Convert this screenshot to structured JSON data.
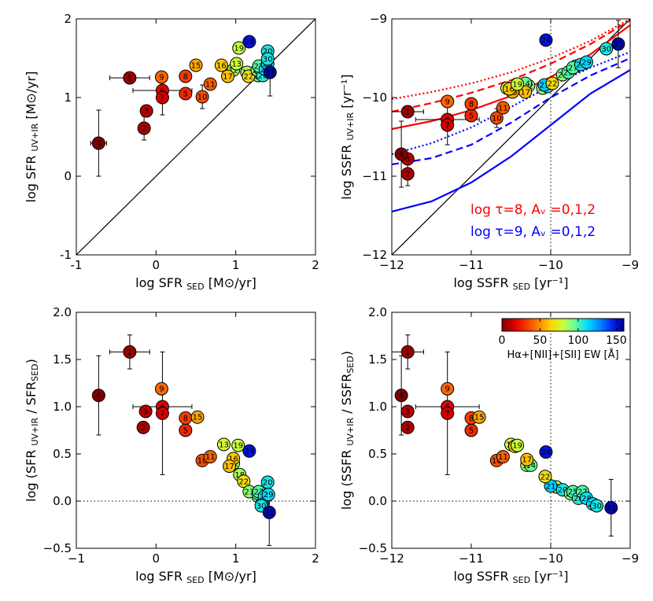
{
  "chart_data": [
    {
      "type": "scatter",
      "id": "sfr",
      "xlabel": "log SFR",
      "xlabel_sub": "SED",
      "xlabel_unit": "[M⊙/yr]",
      "ylabel": "log SFR",
      "ylabel_sub": "UV+IR",
      "ylabel_unit": "[M⊙/yr]",
      "xlim": [
        -1,
        2
      ],
      "ylim": [
        -1,
        2
      ],
      "xticks": [
        "-1",
        "0",
        "1",
        "2"
      ],
      "yticks": [
        "-1",
        "0",
        "1",
        "2"
      ],
      "reference_line": "y = x",
      "points": [
        {
          "id": "1",
          "x": -0.33,
          "y": 1.25,
          "ew": 5,
          "xerr": 0.25
        },
        {
          "id": "2",
          "x": -0.15,
          "y": 0.61,
          "ew": 8,
          "xerr": 0.05,
          "yerr": 0.15
        },
        {
          "id": "3",
          "x": -0.12,
          "y": 0.83,
          "ew": 10
        },
        {
          "id": "4",
          "x": -0.72,
          "y": 0.42,
          "ew": 0,
          "xerr": 0.1,
          "yerr": 0.42
        },
        {
          "id": "5",
          "x": 0.37,
          "y": 1.05,
          "ew": 28
        },
        {
          "id": "6",
          "x": 0.08,
          "y": 1.09,
          "ew": 18,
          "xerr": 0.37
        },
        {
          "id": "7",
          "x": 0.08,
          "y": 1.0,
          "ew": 15,
          "yerr": 0.22
        },
        {
          "id": "8",
          "x": 0.37,
          "y": 1.27,
          "ew": 33
        },
        {
          "id": "9",
          "x": 0.07,
          "y": 1.26,
          "ew": 42
        },
        {
          "id": "10",
          "x": 0.58,
          "y": 1.01,
          "ew": 36,
          "yerr": 0.15
        },
        {
          "id": "11",
          "x": 0.68,
          "y": 1.17,
          "ew": 40
        },
        {
          "id": "12",
          "x": 0.97,
          "y": 1.35,
          "ew": 88
        },
        {
          "id": "13",
          "x": 1.01,
          "y": 1.43,
          "ew": 78
        },
        {
          "id": "14",
          "x": 1.28,
          "y": 1.28,
          "ew": 95
        },
        {
          "id": "15",
          "x": 0.5,
          "y": 1.41,
          "ew": 55
        },
        {
          "id": "16",
          "x": 0.82,
          "y": 1.41,
          "ew": 62
        },
        {
          "id": "17",
          "x": 0.9,
          "y": 1.27,
          "ew": 60
        },
        {
          "id": "18",
          "x": 1.14,
          "y": 1.32,
          "ew": 85
        },
        {
          "id": "19",
          "x": 1.04,
          "y": 1.63,
          "ew": 80
        },
        {
          "id": "20",
          "x": 1.4,
          "y": 1.59,
          "ew": 108
        },
        {
          "id": "21",
          "x": 1.3,
          "y": 1.31,
          "ew": 115
        },
        {
          "id": "22",
          "x": 1.16,
          "y": 1.27,
          "ew": 68
        },
        {
          "id": "23",
          "x": 1.27,
          "y": 1.35,
          "ew": 90
        },
        {
          "id": "24",
          "x": 1.17,
          "y": 1.71,
          "ew": 148
        },
        {
          "id": "25",
          "x": 1.31,
          "y": 1.36,
          "ew": 100
        },
        {
          "id": "26",
          "x": 1.34,
          "y": 1.28,
          "ew": 105
        },
        {
          "id": "27",
          "x": 1.29,
          "y": 1.4,
          "ew": 98
        },
        {
          "id": "28",
          "x": 1.37,
          "y": 1.36,
          "ew": 110
        },
        {
          "id": "29",
          "x": 1.4,
          "y": 1.43,
          "ew": 112
        },
        {
          "id": "30",
          "x": 1.4,
          "y": 1.49,
          "ew": 108
        },
        {
          "id": "31",
          "x": 1.43,
          "y": 1.32,
          "ew": 155,
          "yerr": 0.3
        }
      ]
    },
    {
      "type": "scatter",
      "id": "ssfr",
      "xlabel": "log SSFR",
      "xlabel_sub": "SED",
      "xlabel_unit": "[yr⁻¹]",
      "ylabel": "log SSFR",
      "ylabel_sub": "UV+IR",
      "ylabel_unit": "[yr⁻¹]",
      "xlim": [
        -12,
        -9
      ],
      "ylim": [
        -12,
        -9
      ],
      "xticks": [
        "−12",
        "−11",
        "−10",
        "−9"
      ],
      "yticks": [
        "−12",
        "−11",
        "−10",
        "−9"
      ],
      "vline_x": -10,
      "annotations": [
        {
          "text": "log τ=8,  Aᵥ =0,1,2",
          "color": "#ff0000"
        },
        {
          "text": "log τ=9,  Aᵥ =0,1,2",
          "color": "#0000ff"
        }
      ],
      "models": [
        {
          "name": "tau8_Av0",
          "color": "#ff0000",
          "style": "dotted",
          "x": [
            -12,
            -11.5,
            -11,
            -10.5,
            -10,
            -9.5,
            -9
          ],
          "y": [
            -10.02,
            -9.93,
            -9.82,
            -9.68,
            -9.5,
            -9.28,
            -9.0
          ]
        },
        {
          "name": "tau8_Av1",
          "color": "#ff0000",
          "style": "dashed",
          "x": [
            -12,
            -11.5,
            -11,
            -10.5,
            -10,
            -9.5,
            -9
          ],
          "y": [
            -10.18,
            -10.07,
            -9.94,
            -9.78,
            -9.57,
            -9.32,
            -9.02
          ]
        },
        {
          "name": "tau8_Av2",
          "color": "#ff0000",
          "style": "solid",
          "x": [
            -12,
            -11.5,
            -11,
            -10.5,
            -10,
            -9.5,
            -9
          ],
          "y": [
            -10.4,
            -10.3,
            -10.16,
            -9.98,
            -9.74,
            -9.45,
            -9.08
          ]
        },
        {
          "name": "tau9_Av0",
          "color": "#0000ff",
          "style": "dotted",
          "x": [
            -12,
            -11.5,
            -11,
            -10.5,
            -10,
            -9.5,
            -9
          ],
          "y": [
            -10.72,
            -10.58,
            -10.38,
            -10.12,
            -9.85,
            -9.62,
            -9.42
          ]
        },
        {
          "name": "tau9_Av1",
          "color": "#0000ff",
          "style": "dashed",
          "x": [
            -12,
            -11.5,
            -11,
            -10.5,
            -10,
            -9.5,
            -9
          ],
          "y": [
            -10.85,
            -10.77,
            -10.6,
            -10.32,
            -10.0,
            -9.72,
            -9.5
          ]
        },
        {
          "name": "tau9_Av2",
          "color": "#0000ff",
          "style": "solid",
          "x": [
            -12,
            -11.5,
            -11,
            -10.5,
            -10,
            -9.5,
            -9
          ],
          "y": [
            -11.45,
            -11.32,
            -11.08,
            -10.75,
            -10.35,
            -9.95,
            -9.65
          ]
        }
      ],
      "points": [
        {
          "id": "1",
          "x": -11.8,
          "y": -10.18,
          "ew": 5,
          "xerr": 0.2
        },
        {
          "id": "2",
          "x": -11.8,
          "y": -10.97,
          "ew": 8,
          "yerr": 0.15
        },
        {
          "id": "3",
          "x": -11.8,
          "y": -10.78,
          "ew": 10
        },
        {
          "id": "4",
          "x": -11.88,
          "y": -10.72,
          "ew": 0,
          "yerr": 0.42
        },
        {
          "id": "5",
          "x": -11.0,
          "y": -10.23,
          "ew": 28
        },
        {
          "id": "6",
          "x": -11.3,
          "y": -10.28,
          "ew": 18,
          "xerr": 0.4
        },
        {
          "id": "7",
          "x": -11.3,
          "y": -10.35,
          "ew": 15,
          "yerr": 0.25
        },
        {
          "id": "8",
          "x": -11.0,
          "y": -10.08,
          "ew": 33
        },
        {
          "id": "9",
          "x": -11.3,
          "y": -10.05,
          "ew": 42
        },
        {
          "id": "10",
          "x": -10.68,
          "y": -10.26,
          "ew": 36,
          "yerr": 0.12
        },
        {
          "id": "11",
          "x": -10.6,
          "y": -10.13,
          "ew": 40
        },
        {
          "id": "12",
          "x": -10.28,
          "y": -9.85,
          "ew": 88
        },
        {
          "id": "13",
          "x": -10.55,
          "y": -9.88,
          "ew": 78
        },
        {
          "id": "14",
          "x": -10.32,
          "y": -9.82,
          "ew": 95
        },
        {
          "id": "15",
          "x": -10.48,
          "y": -9.93,
          "ew": 55
        },
        {
          "id": "16",
          "x": -10.52,
          "y": -9.89,
          "ew": 62
        },
        {
          "id": "17",
          "x": -10.32,
          "y": -9.93,
          "ew": 60
        },
        {
          "id": "18",
          "x": -10.1,
          "y": -9.88,
          "ew": 85
        },
        {
          "id": "19",
          "x": -10.42,
          "y": -9.83,
          "ew": 80
        },
        {
          "id": "20",
          "x": -10.04,
          "y": -9.86,
          "ew": 108
        },
        {
          "id": "21",
          "x": -10.08,
          "y": -9.84,
          "ew": 115
        },
        {
          "id": "22",
          "x": -9.98,
          "y": -9.82,
          "ew": 68
        },
        {
          "id": "23",
          "x": -9.85,
          "y": -9.71,
          "ew": 90
        },
        {
          "id": "24",
          "x": -10.06,
          "y": -9.27,
          "ew": 148
        },
        {
          "id": "25",
          "x": -9.78,
          "y": -9.68,
          "ew": 100
        },
        {
          "id": "26",
          "x": -9.68,
          "y": -9.6,
          "ew": 105
        },
        {
          "id": "27",
          "x": -9.72,
          "y": -9.62,
          "ew": 98
        },
        {
          "id": "28",
          "x": -9.62,
          "y": -9.58,
          "ew": 110
        },
        {
          "id": "29",
          "x": -9.55,
          "y": -9.55,
          "ew": 112
        },
        {
          "id": "30",
          "x": -9.3,
          "y": -9.38,
          "ew": 108
        },
        {
          "id": "31",
          "x": -9.15,
          "y": -9.32,
          "ew": 155,
          "yerr": 0.3
        }
      ]
    },
    {
      "type": "scatter",
      "id": "sfr_ratio",
      "xlabel": "log SFR",
      "xlabel_sub": "SED",
      "xlabel_unit": "[M⊙/yr]",
      "ylabel": "log (SFR",
      "ylabel_sub": "UV+IR",
      "ylabel_mid": " / SFR",
      "ylabel_sub2": "SED",
      "ylabel_end": ")",
      "xlim": [
        -1,
        2
      ],
      "ylim": [
        -0.5,
        2.0
      ],
      "xticks": [
        "−1",
        "0",
        "1",
        "2"
      ],
      "yticks": [
        "−0.5",
        "0.0",
        "0.5",
        "1.0",
        "1.5",
        "2.0"
      ],
      "hline_y": 0,
      "points": [
        {
          "id": "1",
          "x": -0.33,
          "y": 1.58,
          "ew": 5,
          "xerr": 0.25,
          "yerr": 0.18
        },
        {
          "id": "2",
          "x": -0.16,
          "y": 0.78,
          "ew": 8
        },
        {
          "id": "3",
          "x": -0.13,
          "y": 0.95,
          "ew": 10
        },
        {
          "id": "4",
          "x": -0.72,
          "y": 1.12,
          "ew": 0,
          "yerr": 0.42
        },
        {
          "id": "5",
          "x": 0.37,
          "y": 0.75,
          "ew": 28
        },
        {
          "id": "6",
          "x": 0.08,
          "y": 1.0,
          "ew": 18,
          "xerr": 0.37
        },
        {
          "id": "7",
          "x": 0.08,
          "y": 0.93,
          "ew": 15,
          "yerr": 0.65
        },
        {
          "id": "8",
          "x": 0.37,
          "y": 0.88,
          "ew": 33
        },
        {
          "id": "9",
          "x": 0.07,
          "y": 1.19,
          "ew": 42
        },
        {
          "id": "10",
          "x": 0.58,
          "y": 0.43,
          "ew": 36
        },
        {
          "id": "11",
          "x": 0.68,
          "y": 0.47,
          "ew": 40
        },
        {
          "id": "12",
          "x": 0.97,
          "y": 0.4,
          "ew": 88
        },
        {
          "id": "13",
          "x": 0.85,
          "y": 0.6,
          "ew": 78
        },
        {
          "id": "14",
          "x": 1.28,
          "y": 0.05,
          "ew": 95
        },
        {
          "id": "15",
          "x": 0.52,
          "y": 0.89,
          "ew": 55
        },
        {
          "id": "16",
          "x": 0.97,
          "y": 0.45,
          "ew": 62
        },
        {
          "id": "17",
          "x": 0.92,
          "y": 0.37,
          "ew": 60
        },
        {
          "id": "18",
          "x": 1.05,
          "y": 0.28,
          "ew": 85
        },
        {
          "id": "19",
          "x": 1.03,
          "y": 0.59,
          "ew": 80
        },
        {
          "id": "20",
          "x": 1.4,
          "y": 0.2,
          "ew": 108
        },
        {
          "id": "21",
          "x": 1.35,
          "y": 0.01,
          "ew": 115
        },
        {
          "id": "22",
          "x": 1.1,
          "y": 0.21,
          "ew": 68
        },
        {
          "id": "23",
          "x": 1.17,
          "y": 0.1,
          "ew": 90
        },
        {
          "id": "24",
          "x": 1.17,
          "y": 0.53,
          "ew": 148
        },
        {
          "id": "25",
          "x": 1.28,
          "y": 0.08,
          "ew": 100
        },
        {
          "id": "26",
          "x": 1.33,
          "y": -0.03,
          "ew": 105
        },
        {
          "id": "27",
          "x": 1.29,
          "y": 0.1,
          "ew": 98
        },
        {
          "id": "28",
          "x": 1.36,
          "y": 0.05,
          "ew": 110
        },
        {
          "id": "29",
          "x": 1.41,
          "y": 0.07,
          "ew": 112
        },
        {
          "id": "30",
          "x": 1.32,
          "y": -0.05,
          "ew": 108
        },
        {
          "id": "31",
          "x": 1.42,
          "y": -0.12,
          "ew": 155,
          "yerr": 0.35
        }
      ]
    },
    {
      "type": "scatter",
      "id": "ssfr_ratio",
      "xlabel": "log SSFR",
      "xlabel_sub": "SED",
      "xlabel_unit": "[yr⁻¹]",
      "ylabel": "log (SSFR",
      "ylabel_sub": "UV+IR",
      "ylabel_mid": " / SSFR",
      "ylabel_sub2": "SED",
      "ylabel_end": ")",
      "xlim": [
        -12,
        -9
      ],
      "ylim": [
        -0.5,
        2.0
      ],
      "xticks": [
        "−12",
        "−11",
        "−10",
        "−9"
      ],
      "yticks": [
        "−0.5",
        "0.0",
        "0.5",
        "1.0",
        "1.5",
        "2.0"
      ],
      "hline_y": 0,
      "vline_x": -10,
      "colorbar": {
        "label": "Hα+[NII]+[SII] EW [Å]",
        "ticks": [
          "0",
          "50",
          "100",
          "150"
        ],
        "min": 0,
        "max": 160
      },
      "points": [
        {
          "id": "1",
          "x": -11.8,
          "y": 1.58,
          "ew": 5,
          "xerr": 0.2,
          "yerr": 0.18
        },
        {
          "id": "2",
          "x": -11.8,
          "y": 0.78,
          "ew": 8
        },
        {
          "id": "3",
          "x": -11.8,
          "y": 0.95,
          "ew": 10
        },
        {
          "id": "4",
          "x": -11.88,
          "y": 1.12,
          "ew": 0,
          "yerr": 0.42
        },
        {
          "id": "5",
          "x": -11.0,
          "y": 0.75,
          "ew": 28
        },
        {
          "id": "6",
          "x": -11.3,
          "y": 1.0,
          "ew": 18,
          "xerr": 0.4
        },
        {
          "id": "7",
          "x": -11.3,
          "y": 0.93,
          "ew": 15,
          "yerr": 0.65
        },
        {
          "id": "8",
          "x": -11.0,
          "y": 0.88,
          "ew": 33
        },
        {
          "id": "9",
          "x": -11.3,
          "y": 1.19,
          "ew": 42
        },
        {
          "id": "10",
          "x": -10.68,
          "y": 0.43,
          "ew": 36
        },
        {
          "id": "11",
          "x": -10.6,
          "y": 0.47,
          "ew": 40
        },
        {
          "id": "12",
          "x": -10.3,
          "y": 0.38,
          "ew": 88
        },
        {
          "id": "13",
          "x": -10.5,
          "y": 0.6,
          "ew": 78
        },
        {
          "id": "14",
          "x": -10.25,
          "y": 0.38,
          "ew": 95
        },
        {
          "id": "15",
          "x": -10.9,
          "y": 0.89,
          "ew": 55
        },
        {
          "id": "16",
          "x": -10.45,
          "y": 0.58,
          "ew": 62
        },
        {
          "id": "17",
          "x": -10.3,
          "y": 0.44,
          "ew": 60
        },
        {
          "id": "18",
          "x": -9.93,
          "y": 0.15,
          "ew": 85
        },
        {
          "id": "19",
          "x": -10.42,
          "y": 0.59,
          "ew": 80
        },
        {
          "id": "20",
          "x": -9.85,
          "y": 0.12,
          "ew": 108
        },
        {
          "id": "21",
          "x": -10.0,
          "y": 0.16,
          "ew": 115
        },
        {
          "id": "22",
          "x": -10.07,
          "y": 0.26,
          "ew": 68
        },
        {
          "id": "23",
          "x": -9.75,
          "y": 0.08,
          "ew": 90
        },
        {
          "id": "24",
          "x": -10.06,
          "y": 0.52,
          "ew": 148
        },
        {
          "id": "25",
          "x": -9.72,
          "y": 0.1,
          "ew": 100
        },
        {
          "id": "26",
          "x": -9.65,
          "y": 0.03,
          "ew": 105
        },
        {
          "id": "27",
          "x": -9.6,
          "y": 0.1,
          "ew": 98
        },
        {
          "id": "28",
          "x": -9.55,
          "y": 0.03,
          "ew": 110
        },
        {
          "id": "29",
          "x": -9.47,
          "y": -0.03,
          "ew": 112
        },
        {
          "id": "30",
          "x": -9.42,
          "y": -0.05,
          "ew": 108
        },
        {
          "id": "31",
          "x": -9.24,
          "y": -0.07,
          "ew": 155,
          "yerr": 0.3
        }
      ]
    }
  ]
}
